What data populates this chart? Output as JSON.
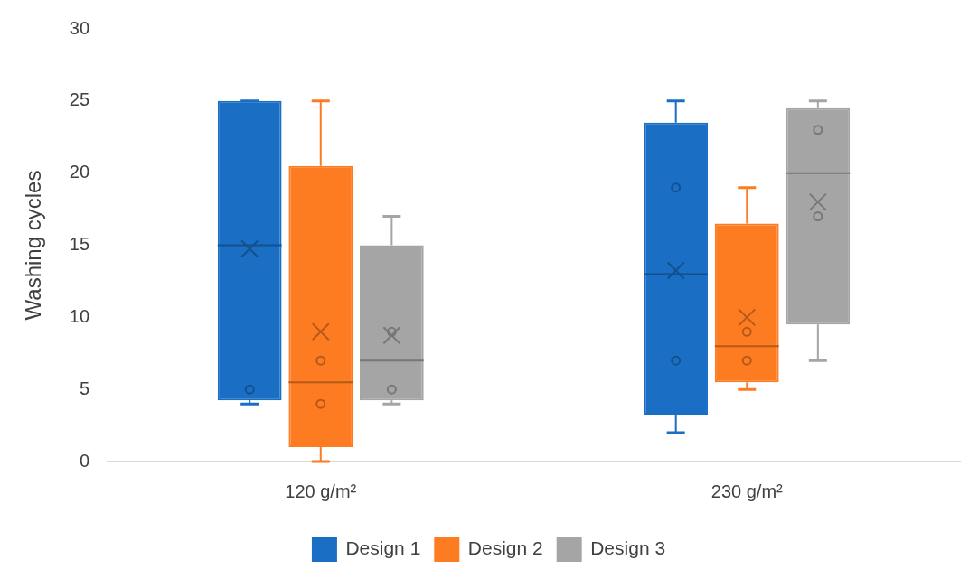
{
  "chart_data": {
    "type": "box",
    "ylabel": "Washing cycles",
    "categories": [
      "120 g/m²",
      "230 g/m²"
    ],
    "ylim": [
      0,
      30
    ],
    "yticks": [
      0,
      5,
      10,
      15,
      20,
      25,
      30
    ],
    "grid": false,
    "legend": "bottom",
    "series": [
      {
        "name": "Design 1",
        "color": "#1a6fc4",
        "boxes": [
          {
            "low": 4,
            "q1": 4.25,
            "median": 15,
            "q3": 25,
            "high": 25,
            "mean": 14.75,
            "outliers": [
              5
            ]
          },
          {
            "low": 2,
            "q1": 3.25,
            "median": 13,
            "q3": 23.5,
            "high": 25,
            "mean": 13.25,
            "outliers": [
              7,
              19
            ]
          }
        ]
      },
      {
        "name": "Design 2",
        "color": "#fd7c22",
        "boxes": [
          {
            "low": 0,
            "q1": 1,
            "median": 5.5,
            "q3": 20.5,
            "high": 25,
            "mean": 9,
            "outliers": [
              4,
              7
            ]
          },
          {
            "low": 5,
            "q1": 5.5,
            "median": 8,
            "q3": 16.5,
            "high": 19,
            "mean": 10,
            "outliers": [
              7,
              9
            ]
          }
        ]
      },
      {
        "name": "Design 3",
        "color": "#a5a5a5",
        "boxes": [
          {
            "low": 4,
            "q1": 4.25,
            "median": 7,
            "q3": 15,
            "high": 17,
            "mean": 8.75,
            "outliers": [
              5,
              9
            ]
          },
          {
            "low": 7,
            "q1": 9.5,
            "median": 20,
            "q3": 24.5,
            "high": 25,
            "mean": 18,
            "outliers": [
              17,
              23
            ]
          }
        ]
      }
    ]
  }
}
